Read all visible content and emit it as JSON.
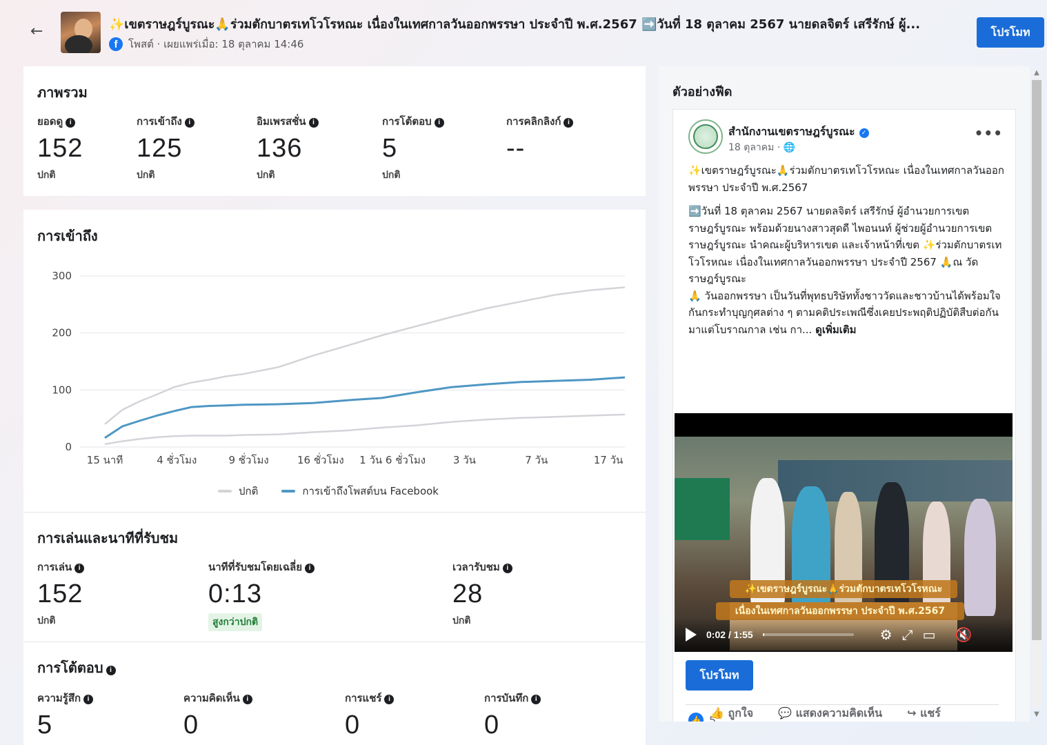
{
  "header": {
    "back_icon": "arrow-left-icon",
    "title": "✨เขตราษฎร์บูรณะ🙏ร่วมตักบาตรเทโวโรหณะ เนื่องในเทศกาลวันออกพรรษา ประจำปี พ.ศ.2567 ➡️วันที่ 18 ตุลาคม 2567 นายดลจิตร์ เสรีรักษ์ ผู้...",
    "meta": "โพสต์ · เผยแพร่เมื่อ: 18 ตุลาคม 14:46",
    "promote": "โปรโมท"
  },
  "overview": {
    "title": "ภาพรวม",
    "metrics": [
      {
        "label": "ยอดดู",
        "value": "152",
        "sub": "ปกติ"
      },
      {
        "label": "การเข้าถึง",
        "value": "125",
        "sub": "ปกติ"
      },
      {
        "label": "อิมเพรสชั่น",
        "value": "136",
        "sub": "ปกติ"
      },
      {
        "label": "การโต้ตอบ",
        "value": "5",
        "sub": "ปกติ"
      },
      {
        "label": "การคลิกลิงก์",
        "value": "--",
        "sub": ""
      }
    ]
  },
  "reach": {
    "title": "การเข้าถึง",
    "legend": [
      "ปกติ",
      "การเข้าถึงโพสต์บน Facebook"
    ]
  },
  "chart_data": {
    "type": "line",
    "title": "การเข้าถึง",
    "x_ticks": [
      "15 นาที",
      "4 ชั่วโมง",
      "9 ชั่วโมง",
      "16 ชั่วโมง",
      "1 วัน 6 ชั่วโมง",
      "3 วัน",
      "7 วัน",
      "17 วัน"
    ],
    "y_ticks": [
      0,
      100,
      200,
      300
    ],
    "ylim": [
      0,
      300
    ],
    "grid": true,
    "legend_position": "bottom",
    "colors": {
      "normal": "#d2d4d8",
      "post": "#4e97c4"
    },
    "x": [
      0,
      0.25,
      0.5,
      0.75,
      1,
      1.25,
      1.5,
      1.75,
      2,
      2.5,
      3,
      3.5,
      4,
      4.5,
      5,
      5.5,
      6,
      6.5,
      7,
      7.5
    ],
    "series": [
      {
        "name": "ปกติ",
        "band": "upper",
        "values": [
          40,
          65,
          80,
          92,
          105,
          113,
          118,
          124,
          128,
          140,
          160,
          178,
          196,
          212,
          228,
          243,
          255,
          267,
          275,
          280
        ]
      },
      {
        "name": "ปกติ",
        "band": "lower",
        "values": [
          5,
          10,
          14,
          17,
          19,
          20,
          20,
          20,
          21,
          22,
          26,
          29,
          34,
          38,
          44,
          48,
          51,
          53,
          55,
          57
        ]
      },
      {
        "name": "การเข้าถึงโพสต์บน Facebook",
        "values": [
          16,
          36,
          46,
          55,
          63,
          70,
          72,
          73,
          74,
          75,
          77,
          82,
          86,
          96,
          105,
          110,
          114,
          116,
          118,
          122
        ]
      }
    ]
  },
  "playback": {
    "title": "การเล่นและนาทีที่รับชม",
    "metrics": [
      {
        "label": "การเล่น",
        "value": "152",
        "sub": "ปกติ"
      },
      {
        "label": "นาทีที่รับชมโดยเฉลี่ย",
        "value": "0:13",
        "sub": "สูงกว่าปกติ"
      },
      {
        "label": "เวลารับชม",
        "value": "28",
        "sub": "ปกติ"
      }
    ]
  },
  "engagement": {
    "title": "การโต้ตอบ",
    "metrics": [
      {
        "label": "ความรู้สึก",
        "value": "5"
      },
      {
        "label": "ความคิดเห็น",
        "value": "0"
      },
      {
        "label": "การแชร์",
        "value": "0"
      },
      {
        "label": "การบันทึก",
        "value": "0"
      }
    ]
  },
  "feed_preview": {
    "title": "ตัวอย่างฟีด",
    "page_name": "สำนักงานเขตราษฎร์บูรณะ",
    "date": "18 ตุลาคม · 🌐",
    "paragraphs": [
      "✨เขตราษฎร์บูรณะ🙏ร่วมตักบาตรเทโวโรหณะ เนื่องในเทศกาลวันออกพรรษา ประจำปี พ.ศ.2567",
      "➡️วันที่ 18 ตุลาคม 2567 นายดลจิตร์ เสรีรักษ์ ผู้อำนวยการเขตราษฎร์บูรณะ พร้อมด้วยนางสาวสุดดี ไพอนนท์ ผู้ช่วยผู้อำนวยการเขตราษฎร์บูรณะ นำคณะผู้บริหารเขต และเจ้าหน้าที่เขต ✨ร่วมตักบาตรเทโวโรหณะ เนื่องในเทศกาลวันออกพรรษา ประจำปี 2567 🙏ณ วัดราษฎร์บูรณะ",
      "🙏 วันออกพรรษา เป็นวันที่พุทธบริษัททั้งชาววัดและชาวบ้านได้พร้อมใจกันกระทำบุญกุศลต่าง ๆ ตามคติประเพณีซึ่งเคยประพฤติปฏิบัติสืบต่อกันมาแต่โบราณกาล เช่น กา..."
    ],
    "see_more": "ดูเพิ่มเติม",
    "video": {
      "caption_line1": "✨เขตราษฎร์บูรณะ🙏ร่วมตักบาตรเทโวโรหณะ",
      "caption_line2": "เนื่องในเทศกาลวันออกพรรษา ประจำปี พ.ศ.2567",
      "time": "0:02 / 1:55",
      "progress": 0.017
    },
    "promote": "โปรโมท",
    "reaction_count": "5",
    "actions": [
      "ถูกใจ",
      "แสดงความคิดเห็น",
      "แชร์"
    ]
  }
}
